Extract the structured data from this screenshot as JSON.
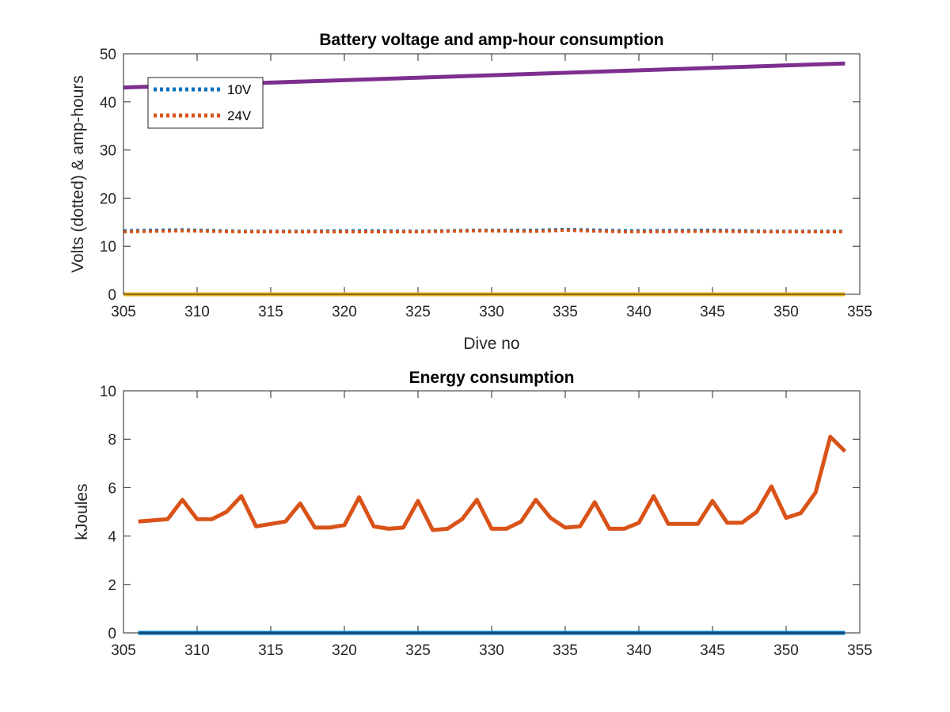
{
  "chart_data": [
    {
      "type": "line",
      "title": "Battery voltage and amp-hour consumption",
      "xlabel": "Dive no",
      "ylabel": "Volts (dotted) & amp-hours",
      "xlim": [
        305,
        355
      ],
      "ylim": [
        0,
        50
      ],
      "xticks": [
        305,
        310,
        315,
        320,
        325,
        330,
        335,
        340,
        345,
        350,
        355
      ],
      "yticks": [
        0,
        10,
        20,
        30,
        40,
        50
      ],
      "grid": false,
      "legend": {
        "location": "top-left",
        "entries": [
          "10V",
          "24V"
        ]
      },
      "series": [
        {
          "name": "10V",
          "style": "dotted",
          "color": "#0072BD",
          "x": [
            305,
            309,
            313,
            317,
            321,
            325,
            329,
            333,
            335,
            339,
            345,
            349,
            354
          ],
          "y": [
            13.2,
            13.4,
            13.1,
            13.1,
            13.2,
            13.1,
            13.3,
            13.3,
            13.5,
            13.2,
            13.3,
            13.1,
            13.1
          ]
        },
        {
          "name": "24V",
          "style": "dotted",
          "color": "#D95319",
          "x": [
            305,
            309,
            313,
            317,
            321,
            325,
            329,
            333,
            335,
            339,
            345,
            349,
            354
          ],
          "y": [
            13.0,
            13.2,
            13.0,
            13.0,
            13.0,
            13.0,
            13.2,
            13.1,
            13.3,
            13.0,
            13.1,
            13.0,
            13.0
          ]
        },
        {
          "style": "solid",
          "color": "#EDB120",
          "x": [
            305,
            354
          ],
          "y": [
            0,
            0
          ]
        },
        {
          "style": "solid",
          "color": "#7E2F8E",
          "x": [
            305,
            354
          ],
          "y": [
            43,
            48
          ]
        }
      ]
    },
    {
      "type": "line",
      "title": "Energy consumption",
      "xlabel": "",
      "ylabel": "kJoules",
      "xlim": [
        305,
        355
      ],
      "ylim": [
        0,
        10
      ],
      "xticks": [
        305,
        310,
        315,
        320,
        325,
        330,
        335,
        340,
        345,
        350,
        355
      ],
      "yticks": [
        0,
        2,
        4,
        6,
        8,
        10
      ],
      "grid": false,
      "series": [
        {
          "style": "solid",
          "color": "#0072BD",
          "x": [
            306,
            354
          ],
          "y": [
            0,
            0
          ]
        },
        {
          "style": "solid",
          "color": "#D95319",
          "x": [
            306,
            307,
            308,
            309,
            310,
            311,
            312,
            313,
            314,
            315,
            316,
            317,
            318,
            319,
            320,
            321,
            322,
            323,
            324,
            325,
            326,
            327,
            328,
            329,
            330,
            331,
            332,
            333,
            334,
            335,
            336,
            337,
            338,
            339,
            340,
            341,
            342,
            343,
            344,
            345,
            346,
            347,
            348,
            349,
            350,
            351,
            352,
            353,
            354
          ],
          "y": [
            4.6,
            4.65,
            4.7,
            5.5,
            4.7,
            4.7,
            5.0,
            5.65,
            4.4,
            4.5,
            4.6,
            5.35,
            4.35,
            4.35,
            4.45,
            5.6,
            4.4,
            4.3,
            4.35,
            5.45,
            4.25,
            4.3,
            4.7,
            5.5,
            4.3,
            4.3,
            4.6,
            5.5,
            4.75,
            4.35,
            4.4,
            5.4,
            4.3,
            4.3,
            4.55,
            5.65,
            4.5,
            4.5,
            4.5,
            5.45,
            4.55,
            4.55,
            5.0,
            6.05,
            4.75,
            4.95,
            5.8,
            8.1,
            7.5
          ]
        }
      ]
    }
  ]
}
